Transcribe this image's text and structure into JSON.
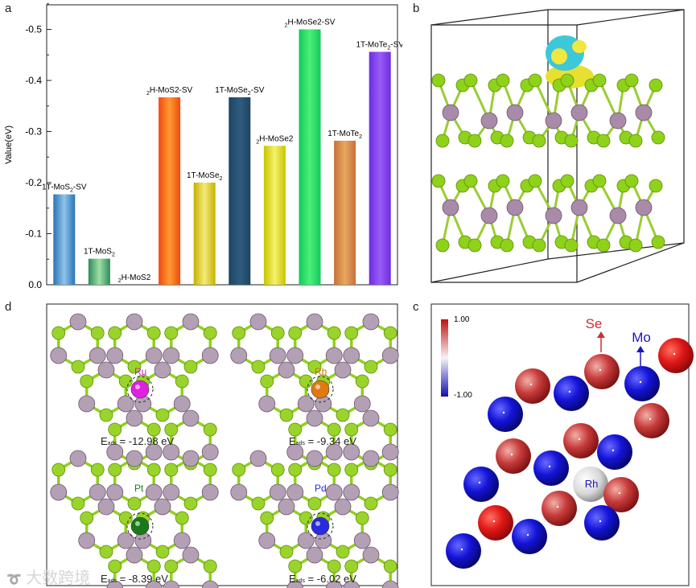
{
  "panels": {
    "a": "a",
    "b": "b",
    "c": "c",
    "d": "d"
  },
  "chart_data": {
    "type": "bar",
    "ylabel": "Value(eV)",
    "xlabel": "",
    "ylim": [
      0,
      -0.55
    ],
    "yticks": [
      "0.0",
      "-0.1",
      "-0.2",
      "-0.3",
      "-0.4",
      "-0.5"
    ],
    "categories": [
      "1T-MoS2-SV",
      "1T-MoS2",
      "2H-MoS2",
      "2H-MoS2-SV",
      "1T-MoSe2",
      "1T-MoSe2-SV",
      "2H-MoSe2",
      "2H-MoSe2-SV",
      "1T-MoTe2",
      "1T-MoTe2-SV"
    ],
    "values": [
      -0.177,
      -0.051,
      0.0,
      -0.367,
      -0.2,
      -0.367,
      -0.272,
      -0.5,
      -0.282,
      -0.456
    ],
    "colors": [
      [
        "#2a74b5",
        "#8fc4ea"
      ],
      [
        "#2e8b57",
        "#9ee0a8"
      ],
      [
        "#cccccc",
        "#eeeeee"
      ],
      [
        "#f04a10",
        "#ff9a30"
      ],
      [
        "#c8b000",
        "#f3ea7a"
      ],
      [
        "#1d4462",
        "#2f5d7f"
      ],
      [
        "#c9c400",
        "#f5f26a"
      ],
      [
        "#12c85a",
        "#4bf07a"
      ],
      [
        "#c8703a",
        "#e6a860"
      ],
      [
        "#6a2ee0",
        "#9a5cf5"
      ]
    ]
  },
  "colorbar": {
    "max": "1.00",
    "min": "-1.00"
  },
  "panel_c_labels": {
    "se": "Se",
    "mo": "Mo",
    "rh": "Rh"
  },
  "metals": [
    {
      "symbol": "Ru",
      "eads_value": "= -12.98 eV",
      "color": "#e020e0"
    },
    {
      "symbol": "Rh",
      "eads_value": "= -9.34 eV",
      "color": "#e07a10"
    },
    {
      "symbol": "Pt",
      "eads_value": "= -8.39 eV",
      "color": "#1a7a1a"
    },
    {
      "symbol": "Pd",
      "eads_value": "= -6.02 eV",
      "color": "#2a2adf"
    }
  ],
  "eads": {
    "E": "E",
    "sub": "ads"
  },
  "watermark": "大数跨境"
}
